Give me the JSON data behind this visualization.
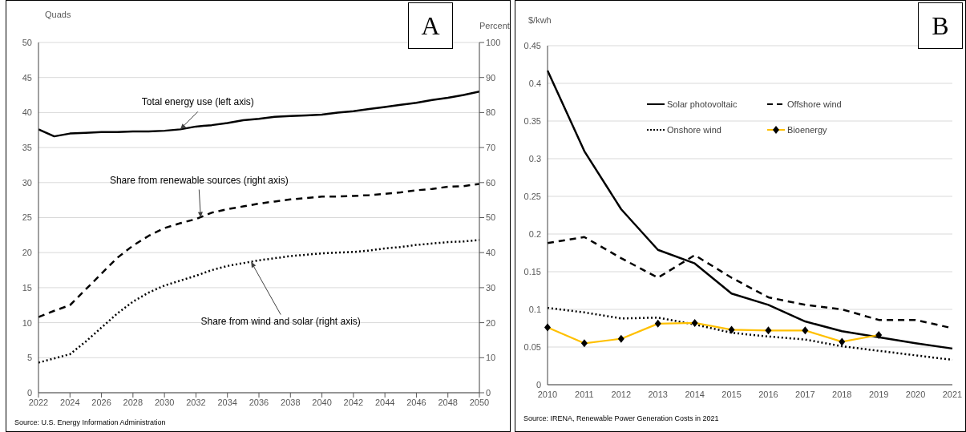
{
  "chart_data": [
    {
      "type": "line",
      "title": "A",
      "ylabel": "Quads",
      "y2label": "Percent",
      "x": [
        2022,
        2023,
        2024,
        2025,
        2026,
        2027,
        2028,
        2029,
        2030,
        2031,
        2032,
        2033,
        2034,
        2035,
        2036,
        2037,
        2038,
        2039,
        2040,
        2041,
        2042,
        2043,
        2044,
        2045,
        2046,
        2047,
        2048,
        2049,
        2050
      ],
      "series": [
        {
          "color": "#000000",
          "line_style": "solid",
          "values": [
            37.6,
            36.6,
            37.0,
            37.1,
            37.2,
            37.2,
            37.3,
            37.3,
            37.4,
            37.6,
            38.0,
            38.2,
            38.5,
            38.9,
            39.1,
            39.4,
            39.5,
            39.6,
            39.7,
            40.0,
            40.2,
            40.5,
            40.8,
            41.1,
            41.4,
            41.8,
            42.1,
            42.5,
            43.0
          ]
        },
        {
          "color": "#000000",
          "line_style": "dashed",
          "axis": "y2",
          "values": [
            21.6,
            23.4,
            25.0,
            29.5,
            34.0,
            38.5,
            42.0,
            44.8,
            47.0,
            48.4,
            49.6,
            51.4,
            52.4,
            53.2,
            54.0,
            54.6,
            55.2,
            55.6,
            56.0,
            56.0,
            56.2,
            56.4,
            56.8,
            57.2,
            57.8,
            58.2,
            58.8,
            59.0,
            59.6
          ]
        },
        {
          "color": "#000000",
          "line_style": "dotted",
          "axis": "y2",
          "values": [
            8.6,
            9.8,
            11.0,
            14.6,
            18.6,
            22.6,
            26.0,
            28.6,
            30.6,
            32.0,
            33.4,
            35.0,
            36.2,
            37.0,
            37.8,
            38.4,
            39.0,
            39.4,
            39.8,
            40.0,
            40.2,
            40.6,
            41.2,
            41.6,
            42.2,
            42.6,
            43.0,
            43.2,
            43.6
          ]
        }
      ],
      "xlim": [
        2022,
        2050
      ],
      "xticks": [
        2022,
        2024,
        2026,
        2028,
        2030,
        2032,
        2034,
        2036,
        2038,
        2040,
        2042,
        2044,
        2046,
        2048,
        2050
      ],
      "ylim": [
        0,
        50
      ],
      "yticks": [
        0,
        5,
        10,
        15,
        20,
        25,
        30,
        35,
        40,
        45,
        50
      ],
      "y2lim": [
        0,
        100
      ],
      "y2ticks": [
        0,
        10,
        20,
        30,
        40,
        50,
        60,
        70,
        80,
        90,
        100
      ],
      "grid": "y",
      "annotations": [
        {
          "text": "Total energy use (left axis)",
          "x": 2031,
          "y": 37.6
        },
        {
          "text": "Share from renewable sources (right axis)",
          "x": 2032.3,
          "y": 25
        },
        {
          "text": "Share from wind and solar (right axis)",
          "x": 2035.5,
          "y": 18.7
        },
        "Source: U.S. Energy Information Administration"
      ]
    },
    {
      "type": "line",
      "title": "B",
      "ylabel": "$/kwh",
      "categories": [
        "2010",
        "2011",
        "2012",
        "2013",
        "2014",
        "2015",
        "2016",
        "2017",
        "2018",
        "2019",
        "2020",
        "2021"
      ],
      "series": [
        {
          "name": "Solar photovoltaic",
          "color": "#000000",
          "line_style": "solid",
          "values": [
            0.417,
            0.31,
            0.233,
            0.179,
            0.161,
            0.121,
            0.106,
            0.084,
            0.071,
            0.063,
            0.055,
            0.048
          ]
        },
        {
          "name": "Offshore wind",
          "color": "#000000",
          "line_style": "dashed",
          "values": [
            0.188,
            0.196,
            0.168,
            0.142,
            0.172,
            0.142,
            0.116,
            0.106,
            0.1,
            0.086,
            0.086,
            0.075
          ]
        },
        {
          "name": "Onshore wind",
          "color": "#000000",
          "line_style": "dotted",
          "values": [
            0.102,
            0.096,
            0.088,
            0.089,
            0.08,
            0.069,
            0.064,
            0.06,
            0.051,
            0.045,
            0.039,
            0.033
          ]
        },
        {
          "name": "Bioenergy",
          "color": "#ffc000",
          "line_style": "solid",
          "marker": "diamond",
          "values": [
            0.076,
            0.055,
            0.061,
            0.081,
            0.082,
            0.073,
            0.072,
            0.072,
            0.057,
            0.066,
            null,
            null
          ]
        }
      ],
      "ylim": [
        0,
        0.45
      ],
      "yticks": [
        0,
        0.05,
        0.1,
        0.15,
        0.2,
        0.25,
        0.3,
        0.35,
        0.4,
        0.45
      ],
      "grid": "y",
      "legend": "top",
      "annotations": [
        "Source: IRENA, Renewable Power Generation Costs in 2021"
      ]
    }
  ]
}
